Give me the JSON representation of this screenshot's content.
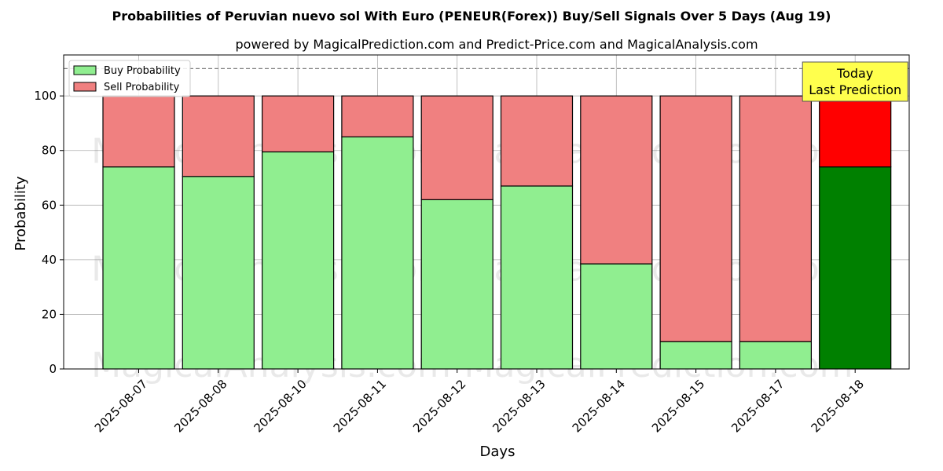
{
  "chart_data": {
    "type": "bar",
    "stacked": true,
    "title": "Probabilities of Peruvian nuevo sol With Euro (PENEUR(Forex)) Buy/Sell Signals Over 5 Days (Aug 19)",
    "subtitle": "powered by MagicalPrediction.com and Predict-Price.com and MagicalAnalysis.com",
    "xlabel": "Days",
    "ylabel": "Probability",
    "ylim": [
      0,
      115
    ],
    "yticks": [
      0,
      20,
      40,
      60,
      80,
      100
    ],
    "grid": true,
    "reference_line": 110,
    "legend_position": "top-left",
    "categories": [
      "2025-08-07",
      "2025-08-08",
      "2025-08-10",
      "2025-08-11",
      "2025-08-12",
      "2025-08-13",
      "2025-08-14",
      "2025-08-15",
      "2025-08-17",
      "2025-08-18"
    ],
    "series": [
      {
        "name": "Buy Probability",
        "color": "#90ee90",
        "highlight_color": "#008000",
        "values": [
          74,
          70.5,
          79.5,
          85,
          62,
          67,
          38.5,
          10,
          10,
          74
        ]
      },
      {
        "name": "Sell Probability",
        "color": "#f08080",
        "highlight_color": "#ff0000",
        "values": [
          26,
          29.5,
          20.5,
          15,
          38,
          33,
          61.5,
          90,
          90,
          26
        ]
      }
    ],
    "highlight_index": 9,
    "annotation": {
      "lines": [
        "Today",
        "Last Prediction"
      ],
      "background": "#ffff4d"
    },
    "watermarks": [
      "MagicalAnalysis.com",
      "MagicalPrediction.com"
    ]
  }
}
